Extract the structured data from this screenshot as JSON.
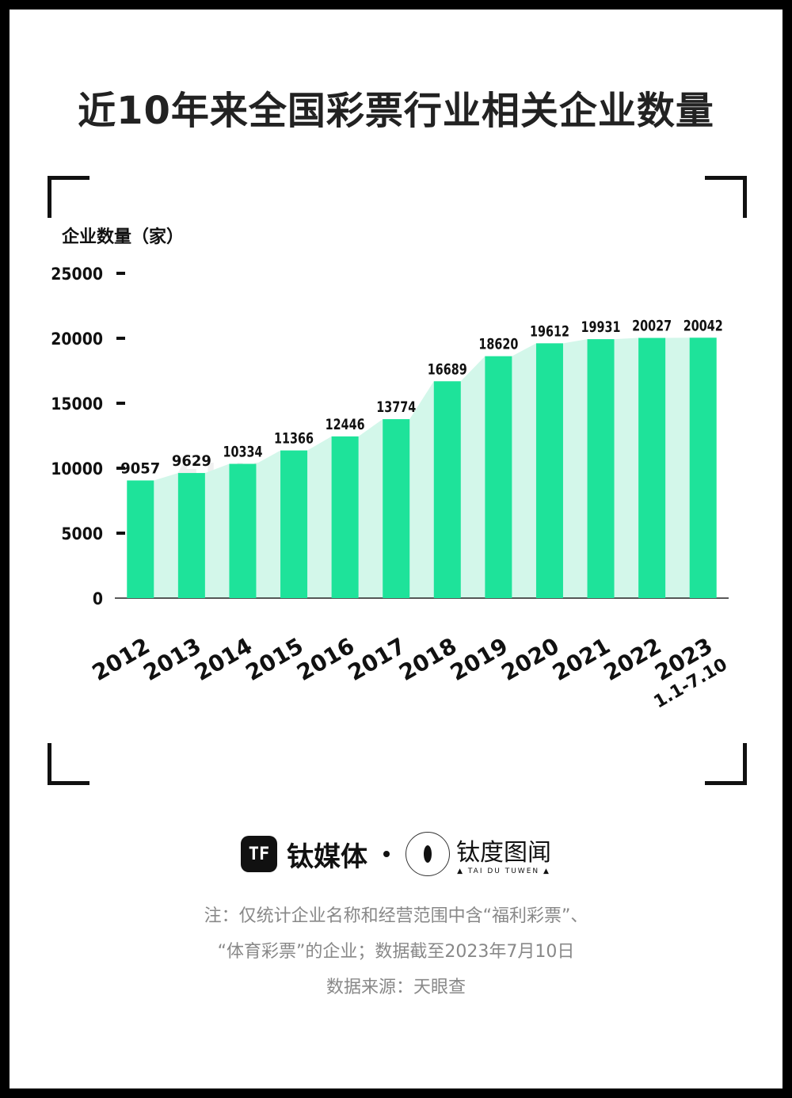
{
  "title": "近10年来全国彩票行业相关企业数量",
  "chart_data": {
    "type": "bar",
    "ylabel": "企业数量（家）",
    "categories": [
      "2012",
      "2013",
      "2014",
      "2015",
      "2016",
      "2017",
      "2018",
      "2019",
      "2020",
      "2021",
      "2022",
      "2023"
    ],
    "category_sublabels": {
      "2023": "1.1-7.10"
    },
    "values": [
      9057,
      9629,
      10334,
      11366,
      12446,
      13774,
      16689,
      18620,
      19612,
      19931,
      20027,
      20042
    ],
    "ylim": [
      0,
      25000
    ],
    "yticks": [
      0,
      5000,
      10000,
      15000,
      20000,
      25000
    ],
    "data_labels": true,
    "grid": false
  },
  "colors": {
    "bar": "#1ee39a",
    "area": "#d3f7ea",
    "text": "#111111",
    "note": "#888888"
  },
  "watermark": {
    "brand1": "钛媒体",
    "brand2": "钛度图闻",
    "brand2_sub": "TAI DU TUWEN"
  },
  "footer": {
    "brand1_logo_text": "TF",
    "brand1_name": "钛媒体",
    "brand2_name": "钛度图闻",
    "brand2_sub": "▲ TAI DU TUWEN ▲",
    "note_line1": "注：仅统计企业名称和经营范围中含“福利彩票”、",
    "note_line2": "“体育彩票”的企业；数据截至2023年7月10日",
    "source": "数据来源：天眼查"
  }
}
